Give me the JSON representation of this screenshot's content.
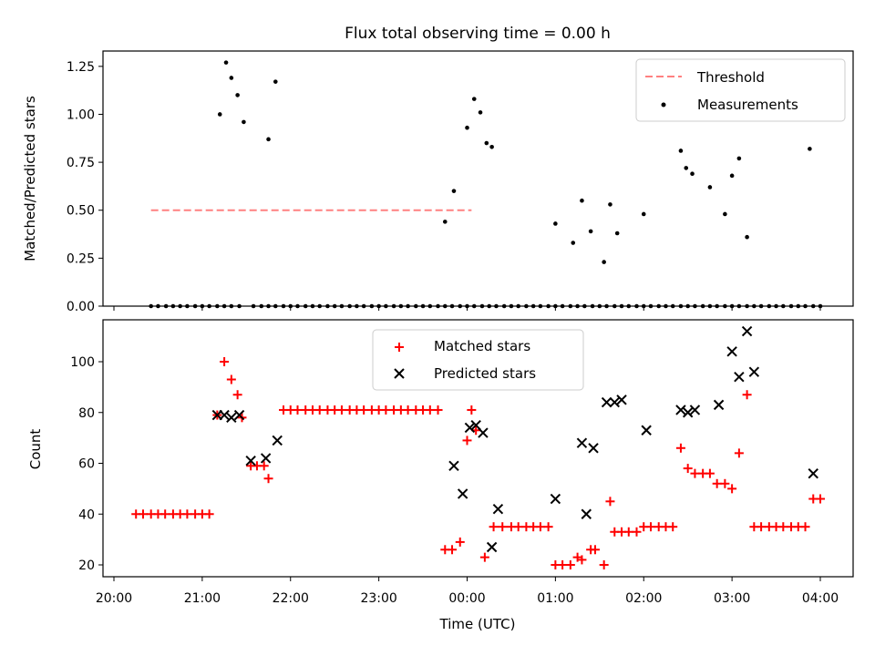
{
  "chart_data": [
    {
      "type": "scatter",
      "title": "Flux total observing time = 0.00 h",
      "xlabel": "",
      "ylabel": "Matched/Predicted stars",
      "ylim": [
        0,
        1.33
      ],
      "yticks": [
        "0.00",
        "0.25",
        "0.50",
        "0.75",
        "1.00",
        "1.25"
      ],
      "yticks_values": [
        0,
        0.25,
        0.5,
        0.75,
        1.0,
        1.25
      ],
      "legend_position": "upper right",
      "series": [
        {
          "name": "Threshold",
          "style": "dashed-line",
          "color": "#ff8080",
          "x": [
            20.42,
            24.05
          ],
          "y": [
            0.5,
            0.5
          ]
        },
        {
          "name": "Measurements",
          "style": "dot",
          "color": "#000000",
          "x": [
            20.42,
            20.5,
            20.59,
            20.67,
            20.75,
            20.83,
            20.92,
            21.0,
            21.08,
            21.17,
            21.25,
            21.33,
            21.42,
            21.58,
            21.67,
            21.75,
            21.83,
            21.92,
            22.0,
            22.08,
            22.17,
            22.25,
            22.33,
            22.42,
            22.5,
            22.58,
            22.67,
            22.75,
            22.83,
            22.92,
            23.0,
            23.08,
            23.17,
            23.25,
            23.33,
            23.42,
            23.5,
            23.58,
            23.67,
            23.75,
            23.83,
            23.92,
            24.0,
            24.08,
            24.17,
            24.25,
            24.33,
            24.42,
            24.5,
            24.58,
            24.67,
            24.75,
            24.83,
            24.92,
            25.0,
            25.08,
            25.17,
            25.25,
            25.33,
            25.42,
            25.5,
            25.58,
            25.67,
            25.75,
            25.83,
            25.92,
            26.0,
            26.08,
            26.17,
            26.25,
            26.33,
            26.42,
            26.5,
            26.58,
            26.67,
            26.75,
            26.83,
            26.92,
            27.0,
            27.08,
            27.17,
            27.25,
            27.33,
            27.42,
            27.5,
            27.58,
            27.67,
            27.75,
            27.83,
            27.92,
            28.0
          ],
          "y": [
            0,
            0,
            0,
            0,
            0,
            0,
            0,
            0,
            0,
            0,
            0,
            0,
            0,
            0,
            0,
            0,
            0,
            0,
            0,
            0,
            0,
            0,
            0,
            0,
            0,
            0,
            0,
            0,
            0,
            0,
            0,
            0,
            0,
            0,
            0,
            0,
            0,
            0,
            0,
            0,
            0,
            0,
            0,
            0,
            0,
            0,
            0,
            0,
            0,
            0,
            0,
            0,
            0,
            0,
            0,
            0,
            0,
            0,
            0,
            0,
            0,
            0,
            0,
            0,
            0,
            0,
            0,
            0,
            0,
            0,
            0,
            0,
            0,
            0,
            0,
            0,
            0,
            0,
            0,
            0,
            0,
            0,
            0,
            0,
            0,
            0,
            0,
            0,
            0,
            0,
            0
          ],
          "x_extra": [
            21.2,
            21.27,
            21.33,
            21.4,
            21.47,
            21.75,
            21.83,
            23.75,
            23.85,
            24.0,
            24.08,
            24.15,
            24.22,
            24.28,
            25.0,
            25.2,
            25.3,
            25.4,
            25.55,
            25.62,
            25.7,
            26.0,
            26.42,
            26.48,
            26.55,
            26.75,
            26.92,
            27.0,
            27.08,
            27.17,
            27.88
          ],
          "y_extra": [
            1.0,
            1.27,
            1.19,
            1.1,
            0.96,
            0.87,
            1.17,
            0.44,
            0.6,
            0.93,
            1.08,
            1.01,
            0.85,
            0.83,
            0.43,
            0.33,
            0.55,
            0.39,
            0.23,
            0.53,
            0.38,
            0.48,
            0.81,
            0.72,
            0.69,
            0.62,
            0.48,
            0.68,
            0.77,
            0.36,
            0.82
          ]
        }
      ]
    },
    {
      "type": "scatter",
      "title": "",
      "xlabel": "Time (UTC)",
      "ylabel": "Count",
      "ylim": [
        16,
        115
      ],
      "yticks": [
        "20",
        "40",
        "60",
        "80",
        "100"
      ],
      "yticks_values": [
        20,
        40,
        60,
        80,
        100
      ],
      "xticks": [
        "20:00",
        "21:00",
        "22:00",
        "23:00",
        "00:00",
        "01:00",
        "02:00",
        "03:00",
        "04:00"
      ],
      "xticks_values": [
        20,
        21,
        22,
        23,
        24,
        25,
        26,
        27,
        28
      ],
      "legend_position": "upper center",
      "series": [
        {
          "name": "Matched stars",
          "marker": "+",
          "color": "#ff0000",
          "x": [
            20.25,
            20.33,
            20.42,
            20.5,
            20.58,
            20.67,
            20.75,
            20.83,
            20.92,
            21.0,
            21.08,
            21.17,
            21.25,
            21.33,
            21.4,
            21.45,
            21.55,
            21.62,
            21.7,
            21.75,
            21.92,
            22.0,
            22.08,
            22.17,
            22.25,
            22.33,
            22.42,
            22.5,
            22.58,
            22.67,
            22.75,
            22.83,
            22.92,
            23.0,
            23.08,
            23.17,
            23.25,
            23.33,
            23.42,
            23.5,
            23.58,
            23.67,
            23.75,
            23.83,
            23.92,
            24.0,
            24.05,
            24.1,
            24.2,
            24.3,
            24.4,
            24.5,
            24.58,
            24.67,
            24.75,
            24.83,
            24.92,
            25.0,
            25.08,
            25.17,
            25.25,
            25.3,
            25.4,
            25.45,
            25.55,
            25.62,
            25.67,
            25.75,
            25.83,
            25.92,
            26.0,
            26.08,
            26.17,
            26.25,
            26.33,
            26.42,
            26.5,
            26.58,
            26.67,
            26.75,
            26.83,
            26.92,
            27.0,
            27.08,
            27.17,
            27.25,
            27.33,
            27.42,
            27.5,
            27.58,
            27.67,
            27.75,
            27.83,
            27.92,
            28.0
          ],
          "y": [
            40,
            40,
            40,
            40,
            40,
            40,
            40,
            40,
            40,
            40,
            40,
            79,
            100,
            93,
            87,
            78,
            59,
            59,
            59,
            54,
            81,
            81,
            81,
            81,
            81,
            81,
            81,
            81,
            81,
            81,
            81,
            81,
            81,
            81,
            81,
            81,
            81,
            81,
            81,
            81,
            81,
            81,
            26,
            26,
            29,
            69,
            81,
            73,
            23,
            35,
            35,
            35,
            35,
            35,
            35,
            35,
            35,
            20,
            20,
            20,
            23,
            22,
            26,
            26,
            20,
            45,
            33,
            33,
            33,
            33,
            35,
            35,
            35,
            35,
            35,
            66,
            58,
            56,
            56,
            56,
            52,
            52,
            50,
            64,
            87,
            35,
            35,
            35,
            35,
            35,
            35,
            35,
            35,
            46,
            46
          ]
        },
        {
          "name": "Predicted stars",
          "marker": "x",
          "color": "#000000",
          "x": [
            21.17,
            21.25,
            21.33,
            21.42,
            21.55,
            21.72,
            21.85,
            23.85,
            23.95,
            24.03,
            24.1,
            24.18,
            24.28,
            24.35,
            25.0,
            25.3,
            25.35,
            25.43,
            25.58,
            25.67,
            25.75,
            26.03,
            26.42,
            26.5,
            26.58,
            26.85,
            27.0,
            27.08,
            27.17,
            27.25,
            27.92
          ],
          "y": [
            79,
            79,
            78,
            79,
            61,
            62,
            69,
            59,
            48,
            74,
            75,
            72,
            27,
            42,
            46,
            68,
            40,
            66,
            84,
            84,
            85,
            73,
            81,
            80,
            81,
            83,
            104,
            94,
            112,
            96,
            56
          ]
        }
      ]
    }
  ]
}
